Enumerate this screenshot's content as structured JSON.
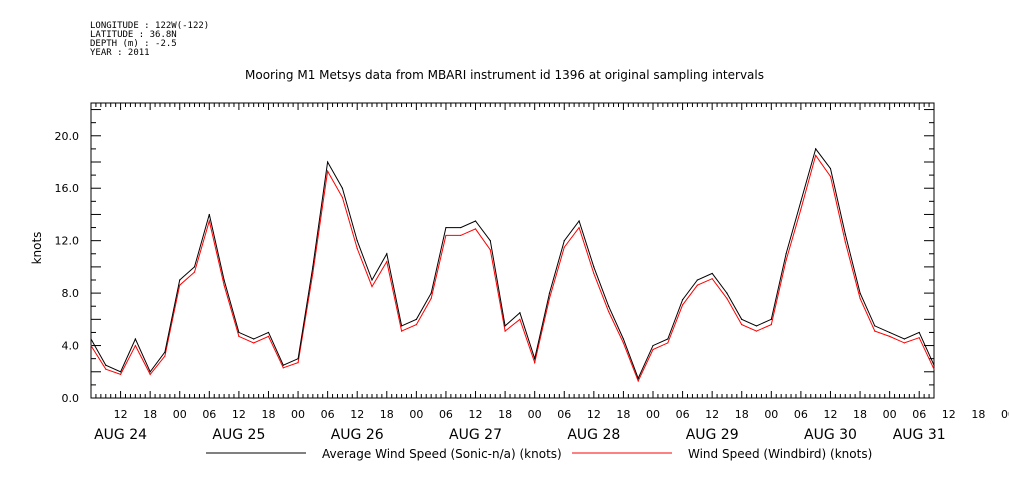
{
  "header": {
    "longitude": "LONGITUDE : 122W(-122)",
    "latitude": "LATITUDE : 36.8N",
    "depth": "DEPTH (m) : -2.5",
    "year": "YEAR : 2011"
  },
  "colors": {
    "series1": "#000000",
    "series2": "#ff0000",
    "axis": "#000000"
  },
  "chart_data": {
    "type": "line",
    "title": "Mooring M1 Metsys data from MBARI instrument id 1396 at original sampling intervals",
    "ylabel": "knots",
    "xlabel": "",
    "ylim": [
      0,
      22.5
    ],
    "yticks": [
      "0.0",
      "4.0",
      "8.0",
      "12.0",
      "16.0",
      "20.0"
    ],
    "xlim": [
      "2011-08-24T06:00",
      "2011-08-31T09:00"
    ],
    "hour_ticks": [
      "12",
      "18",
      "00",
      "06",
      "12",
      "18",
      "00",
      "06",
      "12",
      "18",
      "00",
      "06",
      "12",
      "18",
      "00",
      "06",
      "12",
      "18",
      "00",
      "06",
      "12",
      "18",
      "00",
      "06",
      "12",
      "18",
      "00",
      "06",
      "12",
      "18",
      "00",
      "06"
    ],
    "day_labels": [
      "AUG 24",
      "AUG 25",
      "AUG 26",
      "AUG 27",
      "AUG 28",
      "AUG 29",
      "AUG 30",
      "AUG 31"
    ],
    "grid": false,
    "legend_position": "bottom",
    "x": [
      "2011-08-24T06:00",
      "2011-08-24T09:00",
      "2011-08-24T12:00",
      "2011-08-24T15:00",
      "2011-08-24T18:00",
      "2011-08-24T21:00",
      "2011-08-25T00:00",
      "2011-08-25T03:00",
      "2011-08-25T06:00",
      "2011-08-25T09:00",
      "2011-08-25T12:00",
      "2011-08-25T15:00",
      "2011-08-25T18:00",
      "2011-08-25T21:00",
      "2011-08-26T00:00",
      "2011-08-26T03:00",
      "2011-08-26T06:00",
      "2011-08-26T09:00",
      "2011-08-26T12:00",
      "2011-08-26T15:00",
      "2011-08-26T18:00",
      "2011-08-26T21:00",
      "2011-08-27T00:00",
      "2011-08-27T03:00",
      "2011-08-27T06:00",
      "2011-08-27T09:00",
      "2011-08-27T12:00",
      "2011-08-27T15:00",
      "2011-08-27T18:00",
      "2011-08-27T21:00",
      "2011-08-28T00:00",
      "2011-08-28T03:00",
      "2011-08-28T06:00",
      "2011-08-28T09:00",
      "2011-08-28T12:00",
      "2011-08-28T15:00",
      "2011-08-28T18:00",
      "2011-08-28T21:00",
      "2011-08-29T00:00",
      "2011-08-29T03:00",
      "2011-08-29T06:00",
      "2011-08-29T09:00",
      "2011-08-29T12:00",
      "2011-08-29T15:00",
      "2011-08-29T18:00",
      "2011-08-29T21:00",
      "2011-08-30T00:00",
      "2011-08-30T03:00",
      "2011-08-30T06:00",
      "2011-08-30T09:00",
      "2011-08-30T12:00",
      "2011-08-30T15:00",
      "2011-08-30T18:00",
      "2011-08-30T21:00",
      "2011-08-31T00:00",
      "2011-08-31T03:00",
      "2011-08-31T06:00",
      "2011-08-31T09:00"
    ],
    "series": [
      {
        "name": "Average Wind Speed (Sonic-n/a) (knots)",
        "color": "#000000",
        "values": [
          4.5,
          2.5,
          2.0,
          4.5,
          2.0,
          3.5,
          9.0,
          10.0,
          14.0,
          9.0,
          5.0,
          4.5,
          5.0,
          2.5,
          3.0,
          10.0,
          18.0,
          16.0,
          12.0,
          9.0,
          11.0,
          5.5,
          6.0,
          8.0,
          13.0,
          13.0,
          13.5,
          12.0,
          5.5,
          6.5,
          3.0,
          8.0,
          12.0,
          13.5,
          10.0,
          7.0,
          4.5,
          1.5,
          4.0,
          4.5,
          7.5,
          9.0,
          9.5,
          8.0,
          6.0,
          5.5,
          6.0,
          11.0,
          15.0,
          19.0,
          17.5,
          12.5,
          8.0,
          5.5,
          5.0,
          4.5,
          5.0,
          2.5
        ]
      },
      {
        "name": "Wind Speed (Windbird) (knots)",
        "color": "#ff0000",
        "values": [
          4.0,
          2.2,
          1.8,
          4.0,
          1.8,
          3.2,
          8.6,
          9.6,
          13.5,
          8.6,
          4.7,
          4.2,
          4.7,
          2.3,
          2.7,
          9.5,
          17.3,
          15.3,
          11.4,
          8.5,
          10.4,
          5.1,
          5.6,
          7.6,
          12.4,
          12.4,
          12.9,
          11.3,
          5.1,
          6.0,
          2.7,
          7.6,
          11.5,
          13.0,
          9.5,
          6.6,
          4.2,
          1.3,
          3.7,
          4.2,
          7.1,
          8.6,
          9.1,
          7.6,
          5.6,
          5.1,
          5.6,
          10.5,
          14.4,
          18.5,
          16.9,
          11.9,
          7.6,
          5.1,
          4.7,
          4.2,
          4.6,
          2.2
        ]
      }
    ]
  }
}
